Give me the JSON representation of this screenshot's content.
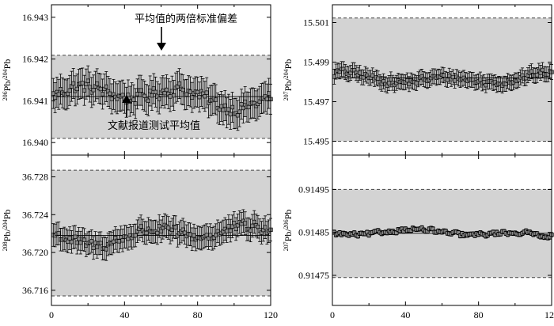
{
  "chart_data": [
    {
      "type": "scatter",
      "panel": "top-left",
      "ylabel": "²⁰⁶Pb/²⁰⁴Pb",
      "ylabel_parts": {
        "iso1": "206",
        "el1": "Pb/",
        "iso2": "204",
        "el2": "Pb"
      },
      "xlim": [
        0,
        120
      ],
      "ylim": [
        16.9397,
        16.9433
      ],
      "yticks": [
        "16.940",
        "16.941",
        "16.942",
        "16.943"
      ],
      "ytick_values": [
        16.94,
        16.941,
        16.942,
        16.943
      ],
      "xticks": [],
      "mean": 16.9411,
      "band": [
        16.9401,
        16.94209
      ],
      "noise_scale": 0.00027,
      "err": 0.00036,
      "annotations": [
        "平均值的两倍标准偏差",
        "文献报道测试平均值"
      ]
    },
    {
      "type": "scatter",
      "panel": "top-right",
      "ylabel": "²⁰⁷Pb/²⁰⁴Pb",
      "ylabel_parts": {
        "iso1": "207",
        "el1": "Pb/",
        "iso2": "204",
        "el2": "Pb"
      },
      "xlim": [
        0,
        120
      ],
      "ylim": [
        15.4943,
        15.5019
      ],
      "yticks": [
        "15.495",
        "15.497",
        "15.499",
        "15.501"
      ],
      "ytick_values": [
        15.495,
        15.497,
        15.499,
        15.501
      ],
      "xticks": [],
      "mean": 15.4982,
      "band": [
        15.495,
        15.50123
      ],
      "noise_scale": 0.0003,
      "err": 0.00038
    },
    {
      "type": "scatter",
      "panel": "bottom-left",
      "ylabel": "²⁰⁸Pb/²⁰⁴Pb",
      "ylabel_parts": {
        "iso1": "208",
        "el1": "Pb/",
        "iso2": "204",
        "el2": "Pb"
      },
      "xlim": [
        0,
        120
      ],
      "ylim": [
        36.7144,
        36.7303
      ],
      "yticks": [
        "36.716",
        "36.720",
        "36.724",
        "36.728"
      ],
      "ytick_values": [
        36.716,
        36.72,
        36.724,
        36.728
      ],
      "xticks": [
        "0",
        "40",
        "80",
        "120"
      ],
      "xtick_values": [
        0,
        40,
        80,
        120
      ],
      "mean": 36.7218,
      "band": [
        36.7154,
        36.7287
      ],
      "noise_scale": 0.001,
      "err": 0.0012
    },
    {
      "type": "scatter",
      "panel": "bottom-right",
      "ylabel": "²⁰⁷Pb/²⁰⁶Pb",
      "ylabel_parts": {
        "iso1": "207",
        "el1": "Pb/",
        "iso2": "206",
        "el2": "Pb"
      },
      "xlim": [
        0,
        120
      ],
      "ylim": [
        0.91468,
        0.91503
      ],
      "yticks": [
        "0.91475",
        "0.91485",
        "0.91495"
      ],
      "ytick_values": [
        0.91475,
        0.91485,
        0.91495
      ],
      "xticks": [
        "0",
        "40",
        "80",
        "120"
      ],
      "xtick_values": [
        0,
        40,
        80,
        120
      ],
      "mean": 0.914848,
      "band": [
        0.914745,
        0.91495
      ],
      "noise_scale": 8.5e-06,
      "err": 5e-06
    }
  ],
  "style": {
    "band_fill": "#d3d3d3",
    "marker_fill": "#8c8c8c",
    "marker_stroke": "#000000",
    "axis_color": "#000000"
  }
}
